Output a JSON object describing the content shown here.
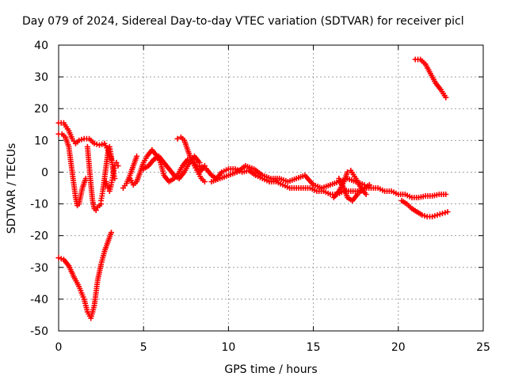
{
  "chart_data": {
    "type": "scatter",
    "title": "Day 079 of 2024, Sidereal Day-to-day VTEC variation (SDTVAR) for receiver picl",
    "xlabel": "GPS time / hours",
    "ylabel": "SDTVAR / TECUs",
    "xlim": [
      0,
      25
    ],
    "ylim": [
      -50,
      40
    ],
    "xticks": [
      0,
      5,
      10,
      15,
      20,
      25
    ],
    "yticks": [
      -50,
      -40,
      -30,
      -20,
      -10,
      0,
      10,
      20,
      30,
      40
    ],
    "grid": true,
    "legend": "none",
    "marker": "plus",
    "color": "#ff0000",
    "series": [
      {
        "x": [
          0.0,
          0.3,
          0.6,
          0.9,
          1.2,
          1.5,
          1.7,
          1.9,
          2.1,
          2.3,
          2.5,
          2.7,
          2.9,
          3.1
        ],
        "y": [
          -27,
          -27.5,
          -29.5,
          -33,
          -36,
          -40,
          -44,
          -46,
          -42,
          -34,
          -29,
          -25,
          -22,
          -19
        ]
      },
      {
        "x": [
          0.0,
          0.3,
          0.6,
          0.8,
          1.0,
          1.2,
          1.5,
          1.8,
          2.1,
          2.4,
          2.7,
          2.9,
          3.1
        ],
        "y": [
          15.5,
          15.5,
          13,
          10.5,
          9,
          10,
          10.5,
          10.5,
          9,
          8.5,
          9,
          7,
          4
        ]
      },
      {
        "x": [
          0.0,
          0.2,
          0.4,
          0.6,
          0.7,
          0.8,
          0.9,
          1.0,
          1.1,
          1.2,
          1.4,
          1.6
        ],
        "y": [
          12,
          12,
          11,
          8,
          4,
          0,
          -4,
          -8,
          -10.5,
          -10,
          -5,
          -2
        ]
      },
      {
        "x": [
          1.7,
          1.8,
          1.9,
          2.0,
          2.1,
          2.2,
          2.3,
          2.5
        ],
        "y": [
          8,
          2,
          -4,
          -9,
          -11.5,
          -12,
          -11,
          -10
        ]
      },
      {
        "x": [
          2.5,
          2.6,
          2.7,
          2.8,
          2.9,
          3.0,
          3.1,
          3.2,
          3.3
        ],
        "y": [
          -9,
          -6,
          -2,
          2,
          6,
          8,
          5,
          1,
          -2
        ]
      },
      {
        "x": [
          2.8,
          2.9,
          3.0,
          3.1,
          3.2,
          3.3,
          3.4,
          3.5
        ],
        "y": [
          -3,
          -5,
          -6,
          -4,
          -1,
          2,
          3,
          2
        ]
      },
      {
        "x": [
          3.8,
          4.0,
          4.2,
          4.4,
          4.6
        ],
        "y": [
          -5,
          -3.5,
          -1,
          2,
          5
        ]
      },
      {
        "x": [
          4.2,
          4.4,
          4.6,
          4.8,
          5.0,
          5.2,
          5.5,
          5.8,
          6.0,
          6.2,
          6.5,
          6.8,
          7.0,
          7.3,
          7.6,
          8.0,
          8.3,
          8.6
        ],
        "y": [
          -2,
          -4,
          -3,
          0,
          3,
          5,
          7,
          5,
          3,
          -1,
          -3,
          -2,
          -1,
          2,
          4,
          3,
          0,
          2
        ]
      },
      {
        "x": [
          5.0,
          5.3,
          5.6,
          5.9,
          6.2,
          6.5,
          6.8,
          7.1,
          7.4,
          7.7,
          8.0,
          8.3
        ],
        "y": [
          1,
          2,
          4,
          5,
          3,
          1,
          -1,
          -2,
          0,
          3,
          5,
          3
        ]
      },
      {
        "x": [
          7.0,
          7.2,
          7.4,
          7.6,
          7.8,
          8.0,
          8.2,
          8.4,
          8.6
        ],
        "y": [
          10.5,
          11,
          10,
          7,
          4,
          2,
          0,
          -2,
          -3
        ]
      },
      {
        "x": [
          8.3,
          8.7,
          9.0,
          9.3,
          9.6,
          10.0,
          10.4,
          10.8,
          11.2,
          11.6,
          12.0,
          12.4,
          12.8,
          13.2,
          13.6,
          14.0,
          14.4,
          14.8,
          15.2,
          15.6,
          16.0,
          16.4,
          16.8,
          17.2,
          17.6,
          18.0,
          18.4,
          18.8,
          19.2,
          19.6,
          20.0,
          20.4,
          20.8,
          21.2,
          21.6,
          22.0,
          22.4,
          22.8
        ],
        "y": [
          2,
          1,
          -1,
          -2,
          0,
          1,
          1,
          0,
          0.5,
          -1,
          -2,
          -3,
          -3,
          -4,
          -5,
          -5,
          -5,
          -5,
          -6,
          -6,
          -7,
          -7,
          -6,
          -6,
          -6,
          -5,
          -5,
          -5,
          -6,
          -6,
          -7,
          -7,
          -8,
          -8,
          -7.5,
          -7.5,
          -7,
          -7
        ]
      },
      {
        "x": [
          9.0,
          9.5,
          10.0,
          10.5,
          11.0,
          11.5,
          12.0,
          12.5,
          13.0,
          13.5,
          14.0,
          14.5,
          15.0,
          15.5,
          16.0,
          16.5,
          17.0,
          17.5,
          18.0
        ],
        "y": [
          -3,
          -2,
          -1,
          0,
          2,
          1,
          -1,
          -2,
          -2,
          -3,
          -2,
          -1,
          -4,
          -5,
          -4,
          -3,
          -2,
          -3,
          -4
        ]
      },
      {
        "x": [
          16.2,
          16.5,
          16.8,
          17.0,
          17.2,
          17.5,
          17.8,
          18.1
        ],
        "y": [
          -8,
          -6,
          -3,
          0,
          0.5,
          -2,
          -5,
          -7
        ]
      },
      {
        "x": [
          16.5,
          16.8,
          17.0,
          17.3,
          17.6,
          18.0,
          18.3
        ],
        "y": [
          -2,
          -5,
          -8,
          -9,
          -7,
          -5,
          -4
        ]
      },
      {
        "x": [
          21.0,
          21.3,
          21.6,
          21.9,
          22.2,
          22.5,
          22.8
        ],
        "y": [
          35.5,
          35.5,
          34,
          31,
          28,
          26,
          23.5
        ]
      },
      {
        "x": [
          20.2,
          20.5,
          20.8,
          21.1,
          21.4,
          21.7,
          22.0,
          22.3,
          22.6,
          22.9
        ],
        "y": [
          -9,
          -10,
          -11.5,
          -12.5,
          -13.5,
          -14,
          -14,
          -13.5,
          -13,
          -12.5
        ]
      }
    ]
  }
}
